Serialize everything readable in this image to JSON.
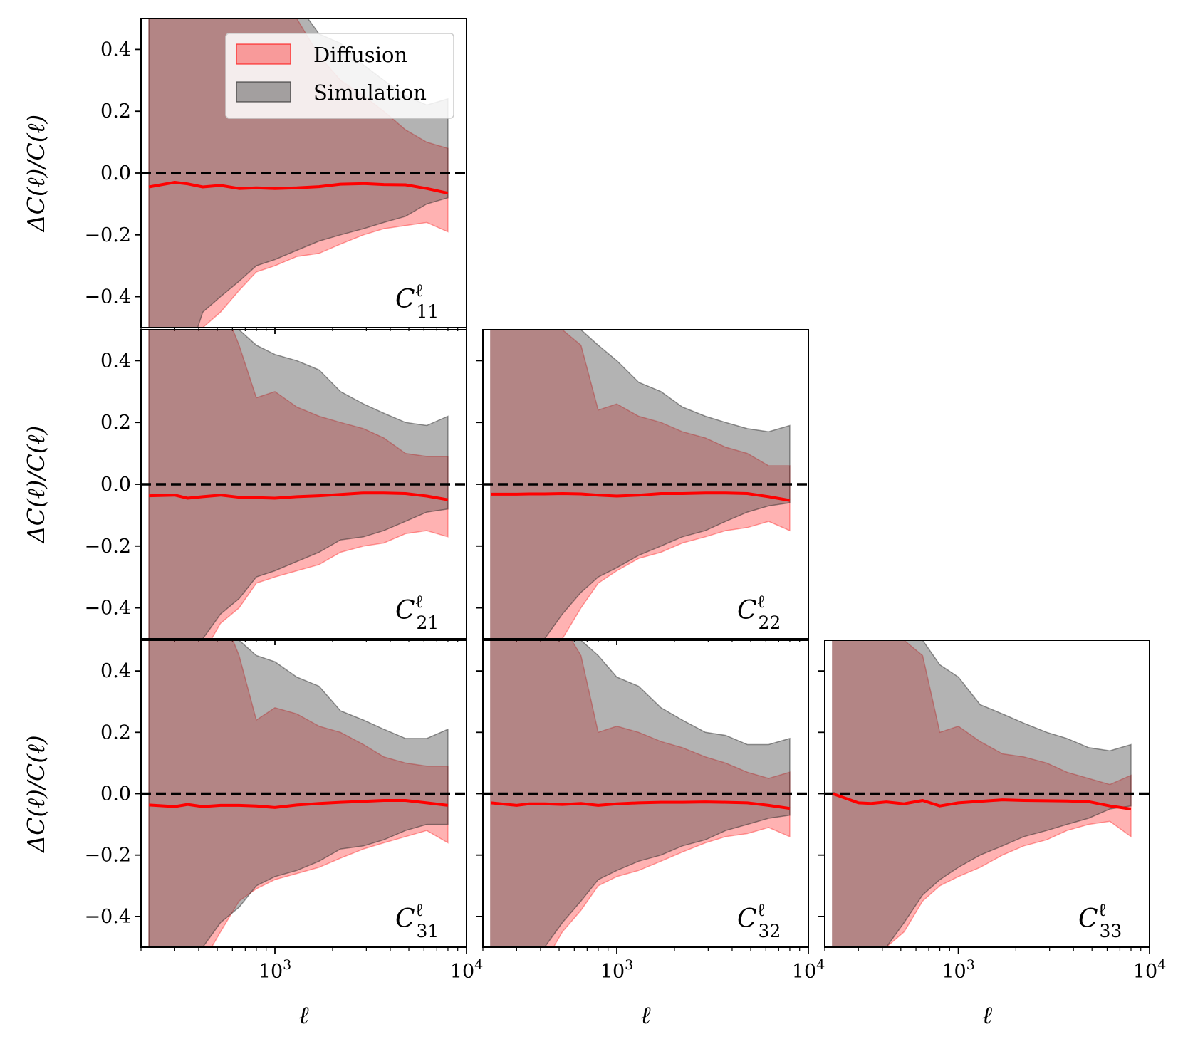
{
  "chart_data": {
    "type": "area",
    "ylabel": "ΔC(ℓ)/C(ℓ)",
    "xlabel": "ℓ",
    "xscale": "log",
    "xlim": [
      200,
      10000
    ],
    "ylim": [
      -0.5,
      0.5
    ],
    "yticks": [
      -0.4,
      -0.2,
      0.0,
      0.2,
      0.4
    ],
    "ytick_labels": [
      "−0.4",
      "−0.2",
      "0.0",
      "0.2",
      "0.4"
    ],
    "xtick_labels": [
      {
        "value": 1000,
        "base": "10",
        "exp": "3"
      },
      {
        "value": 10000,
        "base": "10",
        "exp": "4"
      }
    ],
    "reference_line": 0.0,
    "legend": {
      "location": "top-right of first panel",
      "entries": [
        {
          "label": "Diffusion",
          "color": "#ff6666"
        },
        {
          "label": "Simulation",
          "color": "#666666"
        }
      ]
    },
    "colors": {
      "diffusion_fill": "#ff0000",
      "simulation_fill": "#404040",
      "mean_line": "#ff0000",
      "zero_line": "#000000"
    },
    "ell": [
      220,
      300,
      350,
      420,
      520,
      650,
      800,
      1000,
      1300,
      1700,
      2200,
      2900,
      3700,
      4800,
      6200,
      8000
    ],
    "panels": [
      {
        "id": "C11",
        "base": "C",
        "sup": "ℓ",
        "sub": "11",
        "mean": [
          -0.045,
          -0.03,
          -0.035,
          -0.045,
          -0.04,
          -0.05,
          -0.048,
          -0.05,
          -0.048,
          -0.044,
          -0.036,
          -0.034,
          -0.037,
          -0.038,
          -0.05,
          -0.065
        ],
        "sim_upper": [
          0.8,
          0.8,
          0.8,
          0.8,
          0.8,
          0.8,
          0.8,
          0.75,
          0.55,
          0.45,
          0.42,
          0.35,
          0.3,
          0.25,
          0.22,
          0.24
        ],
        "sim_lower": [
          -0.8,
          -0.8,
          -0.6,
          -0.45,
          -0.4,
          -0.35,
          -0.3,
          -0.28,
          -0.25,
          -0.22,
          -0.2,
          -0.18,
          -0.16,
          -0.14,
          -0.1,
          -0.08
        ],
        "diff_upper": [
          0.8,
          0.8,
          0.8,
          0.8,
          0.8,
          0.8,
          0.8,
          0.62,
          0.5,
          0.38,
          0.3,
          0.25,
          0.2,
          0.14,
          0.1,
          0.08
        ],
        "diff_lower": [
          -0.8,
          -0.8,
          -0.6,
          -0.5,
          -0.45,
          -0.38,
          -0.32,
          -0.3,
          -0.27,
          -0.26,
          -0.23,
          -0.2,
          -0.18,
          -0.17,
          -0.16,
          -0.19
        ]
      },
      {
        "id": "C21",
        "base": "C",
        "sup": "ℓ",
        "sub": "21",
        "mean": [
          -0.037,
          -0.035,
          -0.045,
          -0.04,
          -0.035,
          -0.042,
          -0.043,
          -0.045,
          -0.04,
          -0.037,
          -0.033,
          -0.028,
          -0.028,
          -0.03,
          -0.038,
          -0.05
        ],
        "sim_upper": [
          0.8,
          0.8,
          0.8,
          0.8,
          0.6,
          0.5,
          0.45,
          0.42,
          0.4,
          0.37,
          0.3,
          0.26,
          0.23,
          0.2,
          0.19,
          0.22
        ],
        "sim_lower": [
          -0.8,
          -0.8,
          -0.6,
          -0.5,
          -0.42,
          -0.37,
          -0.3,
          -0.28,
          -0.25,
          -0.22,
          -0.18,
          -0.17,
          -0.15,
          -0.12,
          -0.09,
          -0.08
        ],
        "diff_upper": [
          0.8,
          0.8,
          0.8,
          0.8,
          0.6,
          0.45,
          0.28,
          0.3,
          0.25,
          0.22,
          0.2,
          0.18,
          0.15,
          0.1,
          0.09,
          0.09
        ],
        "diff_lower": [
          -0.8,
          -0.8,
          -0.6,
          -0.55,
          -0.45,
          -0.4,
          -0.32,
          -0.3,
          -0.28,
          -0.26,
          -0.22,
          -0.2,
          -0.19,
          -0.16,
          -0.15,
          -0.17
        ]
      },
      {
        "id": "C22",
        "base": "C",
        "sup": "ℓ",
        "sub": "22",
        "mean": [
          -0.032,
          -0.032,
          -0.031,
          -0.031,
          -0.03,
          -0.031,
          -0.035,
          -0.038,
          -0.035,
          -0.03,
          -0.03,
          -0.028,
          -0.028,
          -0.03,
          -0.04,
          -0.052
        ],
        "sim_upper": [
          0.8,
          0.8,
          0.8,
          0.8,
          0.6,
          0.5,
          0.45,
          0.4,
          0.33,
          0.3,
          0.25,
          0.22,
          0.2,
          0.18,
          0.17,
          0.19
        ],
        "sim_lower": [
          -0.8,
          -0.8,
          -0.6,
          -0.5,
          -0.42,
          -0.35,
          -0.3,
          -0.27,
          -0.23,
          -0.2,
          -0.17,
          -0.15,
          -0.12,
          -0.09,
          -0.07,
          -0.06
        ],
        "diff_upper": [
          0.8,
          0.8,
          0.8,
          0.8,
          0.5,
          0.45,
          0.24,
          0.26,
          0.22,
          0.2,
          0.17,
          0.15,
          0.12,
          0.1,
          0.06,
          0.06
        ],
        "diff_lower": [
          -0.8,
          -0.8,
          -0.7,
          -0.6,
          -0.5,
          -0.4,
          -0.32,
          -0.28,
          -0.24,
          -0.22,
          -0.19,
          -0.17,
          -0.15,
          -0.14,
          -0.12,
          -0.15
        ]
      },
      {
        "id": "C31",
        "base": "C",
        "sup": "ℓ",
        "sub": "31",
        "mean": [
          -0.037,
          -0.042,
          -0.035,
          -0.042,
          -0.038,
          -0.038,
          -0.04,
          -0.045,
          -0.037,
          -0.032,
          -0.028,
          -0.025,
          -0.022,
          -0.022,
          -0.03,
          -0.038
        ],
        "sim_upper": [
          0.8,
          0.8,
          0.8,
          0.8,
          0.6,
          0.5,
          0.45,
          0.43,
          0.38,
          0.35,
          0.27,
          0.24,
          0.21,
          0.18,
          0.18,
          0.21
        ],
        "sim_lower": [
          -0.8,
          -0.8,
          -0.6,
          -0.5,
          -0.42,
          -0.37,
          -0.3,
          -0.27,
          -0.25,
          -0.22,
          -0.18,
          -0.17,
          -0.15,
          -0.12,
          -0.1,
          -0.1
        ],
        "diff_upper": [
          0.8,
          0.8,
          0.8,
          0.8,
          0.6,
          0.45,
          0.24,
          0.28,
          0.26,
          0.22,
          0.2,
          0.16,
          0.12,
          0.1,
          0.09,
          0.09
        ],
        "diff_lower": [
          -0.8,
          -0.8,
          -0.6,
          -0.55,
          -0.45,
          -0.35,
          -0.31,
          -0.28,
          -0.26,
          -0.24,
          -0.21,
          -0.18,
          -0.16,
          -0.14,
          -0.12,
          -0.16
        ]
      },
      {
        "id": "C32",
        "base": "C",
        "sup": "ℓ",
        "sub": "32",
        "mean": [
          -0.03,
          -0.038,
          -0.033,
          -0.033,
          -0.035,
          -0.032,
          -0.038,
          -0.033,
          -0.03,
          -0.028,
          -0.028,
          -0.027,
          -0.028,
          -0.03,
          -0.038,
          -0.048
        ],
        "sim_upper": [
          0.8,
          0.8,
          0.8,
          0.8,
          0.6,
          0.5,
          0.45,
          0.38,
          0.35,
          0.28,
          0.24,
          0.2,
          0.19,
          0.16,
          0.16,
          0.18
        ],
        "sim_lower": [
          -0.8,
          -0.8,
          -0.6,
          -0.5,
          -0.42,
          -0.35,
          -0.28,
          -0.25,
          -0.22,
          -0.2,
          -0.17,
          -0.15,
          -0.12,
          -0.1,
          -0.08,
          -0.07
        ],
        "diff_upper": [
          0.8,
          0.8,
          0.8,
          0.8,
          0.55,
          0.45,
          0.2,
          0.22,
          0.2,
          0.17,
          0.15,
          0.12,
          0.1,
          0.07,
          0.05,
          0.07
        ],
        "diff_lower": [
          -0.8,
          -0.8,
          -0.65,
          -0.55,
          -0.45,
          -0.38,
          -0.3,
          -0.27,
          -0.25,
          -0.22,
          -0.19,
          -0.16,
          -0.14,
          -0.13,
          -0.11,
          -0.14
        ]
      },
      {
        "id": "C33",
        "base": "C",
        "sup": "ℓ",
        "sub": "33",
        "mean": [
          0.0,
          -0.03,
          -0.032,
          -0.027,
          -0.033,
          -0.022,
          -0.04,
          -0.03,
          -0.025,
          -0.02,
          -0.022,
          -0.023,
          -0.024,
          -0.026,
          -0.04,
          -0.05
        ],
        "sim_upper": [
          0.8,
          0.8,
          0.8,
          0.8,
          0.6,
          0.5,
          0.42,
          0.38,
          0.29,
          0.26,
          0.23,
          0.2,
          0.18,
          0.15,
          0.14,
          0.16
        ],
        "sim_lower": [
          -0.8,
          -0.8,
          -0.6,
          -0.5,
          -0.42,
          -0.33,
          -0.28,
          -0.24,
          -0.2,
          -0.17,
          -0.14,
          -0.12,
          -0.1,
          -0.08,
          -0.05,
          -0.04
        ],
        "diff_upper": [
          0.8,
          0.8,
          0.8,
          0.8,
          0.5,
          0.45,
          0.2,
          0.22,
          0.17,
          0.13,
          0.12,
          0.1,
          0.07,
          0.05,
          0.03,
          0.06
        ],
        "diff_lower": [
          -0.8,
          -0.8,
          -0.6,
          -0.5,
          -0.45,
          -0.35,
          -0.3,
          -0.27,
          -0.24,
          -0.2,
          -0.17,
          -0.15,
          -0.12,
          -0.1,
          -0.09,
          -0.14
        ]
      }
    ]
  }
}
